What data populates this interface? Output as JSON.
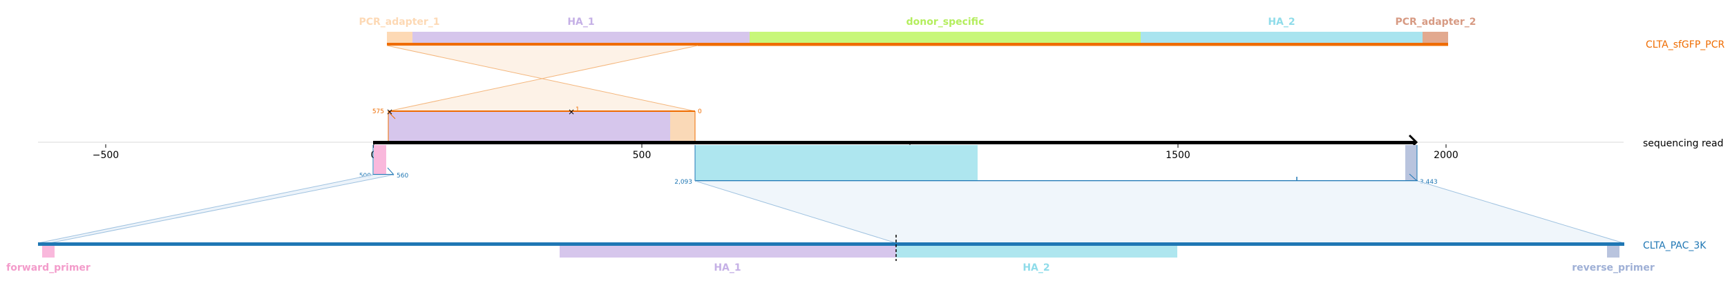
{
  "tracks": {
    "top": {
      "name": "CLTA_sfGFP_PCR",
      "color": "#ef6c00",
      "features": [
        {
          "name": "PCR_adapter_1",
          "color": "#fdd9b5"
        },
        {
          "name": "HA_1",
          "color": "#d6c6ec"
        },
        {
          "name": "donor_specific",
          "color": "#c8f77a"
        },
        {
          "name": "HA_2",
          "color": "#a9e4ef"
        },
        {
          "name": "PCR_adapter_2",
          "color": "#e2a98f"
        }
      ]
    },
    "read": {
      "name": "sequencing read",
      "axis_ticks": [
        "−500",
        "0",
        "500",
        "1000",
        "1500",
        "2000"
      ],
      "upper_alignment": {
        "start_label": "575",
        "end_label": "0",
        "mid_label": "1"
      },
      "lower_left": {
        "start_label": "500",
        "end_label": "560"
      },
      "lower_right": {
        "start_label": "2,093",
        "end_label": "3,443"
      }
    },
    "bottom": {
      "name": "CLTA_PAC_3K",
      "color": "#1f77b4",
      "features": [
        {
          "name": "forward_primer",
          "color": "#f9b8dc"
        },
        {
          "name": "HA_1",
          "color": "#d6c6ec"
        },
        {
          "name": "HA_2",
          "color": "#a9e4ef"
        },
        {
          "name": "reverse_primer",
          "color": "#b9c4de"
        }
      ]
    }
  }
}
